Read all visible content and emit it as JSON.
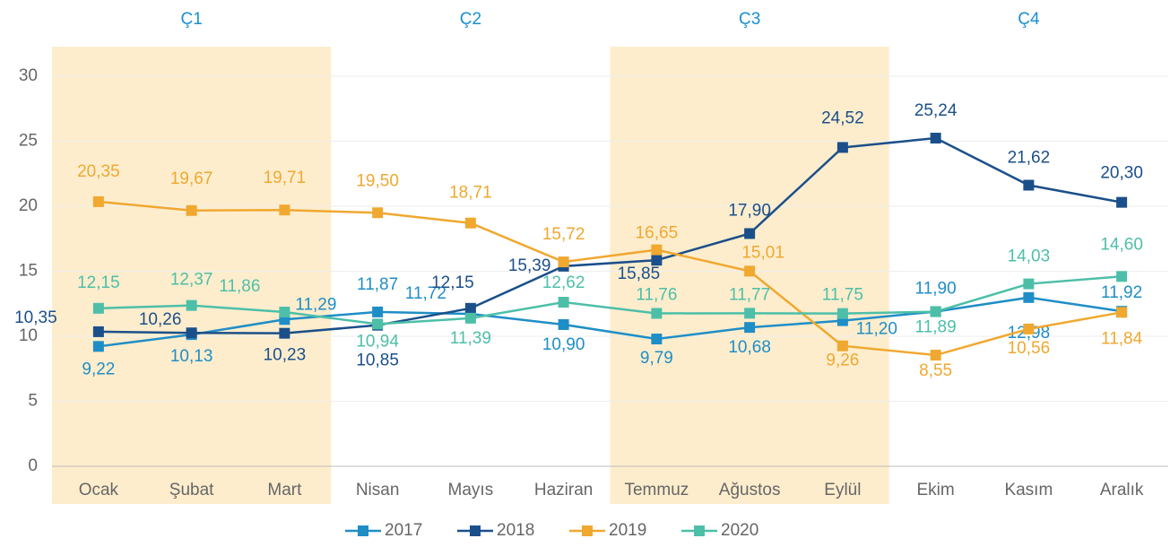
{
  "chart_data": {
    "type": "line",
    "quarters": [
      "Ç1",
      "Ç2",
      "Ç3",
      "Ç4"
    ],
    "quarter_color": "#1a8fd0",
    "shade_color": "#fdedcd",
    "categories": [
      "Ocak",
      "Şubat",
      "Mart",
      "Nisan",
      "Mayıs",
      "Haziran",
      "Temmuz",
      "Ağustos",
      "Eylül",
      "Ekim",
      "Kasım",
      "Aralık"
    ],
    "series": [
      {
        "name": "2017",
        "color": "#1f8ec6",
        "values": [
          9.22,
          10.13,
          11.29,
          11.87,
          11.72,
          10.9,
          9.79,
          10.68,
          11.2,
          11.9,
          12.98,
          11.92
        ],
        "value_labels": [
          "9,22",
          "10,13",
          "11,29",
          "11,87",
          "11,72",
          "10,90",
          "9,79",
          "10,68",
          "11,20",
          "11,90",
          "12,98",
          "11,92"
        ]
      },
      {
        "name": "2018",
        "color": "#1b4f8a",
        "values": [
          10.35,
          10.26,
          10.23,
          10.85,
          12.15,
          15.39,
          15.85,
          17.9,
          24.52,
          25.24,
          21.62,
          20.3
        ],
        "value_labels": [
          "10,35",
          "10,26",
          "10,23",
          "10,85",
          "12,15",
          "15,39",
          "15,85",
          "17,90",
          "24,52",
          "25,24",
          "21,62",
          "20,30"
        ]
      },
      {
        "name": "2019",
        "color": "#f0a830",
        "values": [
          20.35,
          19.67,
          19.71,
          19.5,
          18.71,
          15.72,
          16.65,
          15.01,
          9.26,
          8.55,
          10.56,
          11.84
        ],
        "value_labels": [
          "20,35",
          "19,67",
          "19,71",
          "19,50",
          "18,71",
          "15,72",
          "16,65",
          "15,01",
          "9,26",
          "8,55",
          "10,56",
          "11,84"
        ]
      },
      {
        "name": "2020",
        "color": "#4dbfa8",
        "values": [
          12.15,
          12.37,
          11.86,
          10.94,
          11.39,
          12.62,
          11.76,
          11.77,
          11.75,
          11.89,
          14.03,
          14.6
        ],
        "value_labels": [
          "12,15",
          "12,37",
          "11,86",
          "10,94",
          "11,39",
          "12,62",
          "11,76",
          "11,77",
          "11,75",
          "11,89",
          "14,03",
          "14,60"
        ]
      }
    ],
    "ylim": [
      0,
      30
    ],
    "yticks": [
      0,
      5,
      10,
      15,
      20,
      25,
      30
    ],
    "grid": true,
    "legend": "bottom"
  }
}
